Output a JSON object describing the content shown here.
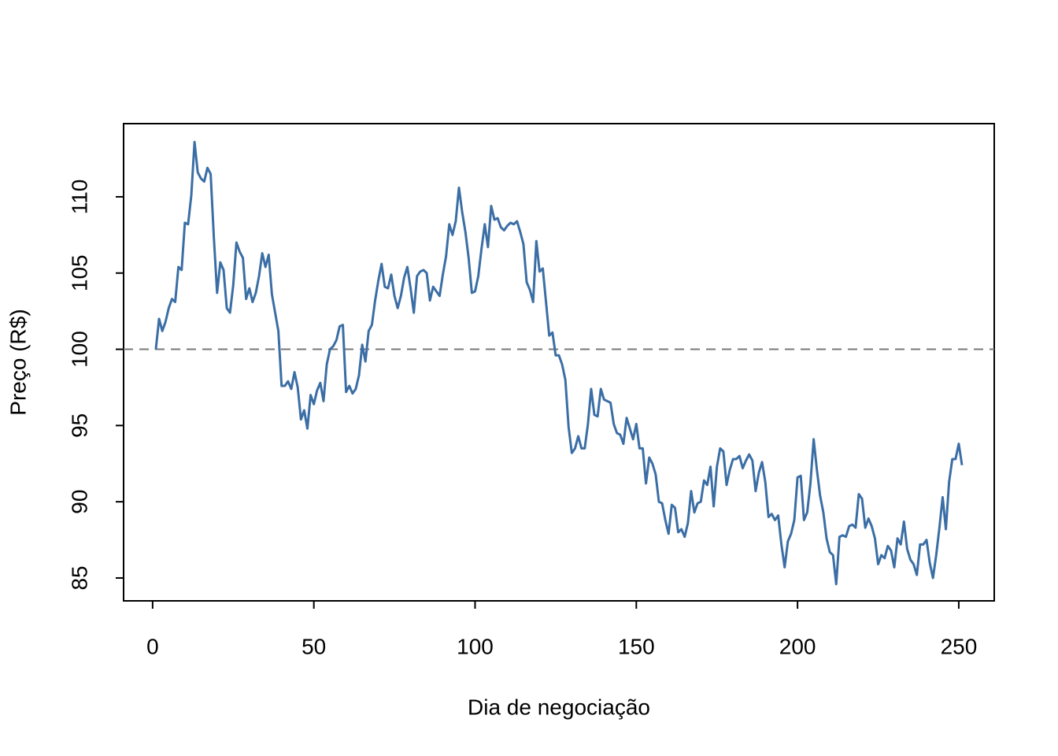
{
  "chart_data": {
    "type": "line",
    "xlabel": "Dia de negociação",
    "ylabel": "Preço (R$)",
    "x": [
      1,
      2,
      3,
      4,
      5,
      6,
      7,
      8,
      9,
      10,
      11,
      12,
      13,
      14,
      15,
      16,
      17,
      18,
      19,
      20,
      21,
      22,
      23,
      24,
      25,
      26,
      27,
      28,
      29,
      30,
      31,
      32,
      33,
      34,
      35,
      36,
      37,
      38,
      39,
      40,
      41,
      42,
      43,
      44,
      45,
      46,
      47,
      48,
      49,
      50,
      51,
      52,
      53,
      54,
      55,
      56,
      57,
      58,
      59,
      60,
      61,
      62,
      63,
      64,
      65,
      66,
      67,
      68,
      69,
      70,
      71,
      72,
      73,
      74,
      75,
      76,
      77,
      78,
      79,
      80,
      81,
      82,
      83,
      84,
      85,
      86,
      87,
      88,
      89,
      90,
      91,
      92,
      93,
      94,
      95,
      96,
      97,
      98,
      99,
      100,
      101,
      102,
      103,
      104,
      105,
      106,
      107,
      108,
      109,
      110,
      111,
      112,
      113,
      114,
      115,
      116,
      117,
      118,
      119,
      120,
      121,
      122,
      123,
      124,
      125,
      126,
      127,
      128,
      129,
      130,
      131,
      132,
      133,
      134,
      135,
      136,
      137,
      138,
      139,
      140,
      141,
      142,
      143,
      144,
      145,
      146,
      147,
      148,
      149,
      150,
      151,
      152,
      153,
      154,
      155,
      156,
      157,
      158,
      159,
      160,
      161,
      162,
      163,
      164,
      165,
      166,
      167,
      168,
      169,
      170,
      171,
      172,
      173,
      174,
      175,
      176,
      177,
      178,
      179,
      180,
      181,
      182,
      183,
      184,
      185,
      186,
      187,
      188,
      189,
      190,
      191,
      192,
      193,
      194,
      195,
      196,
      197,
      198,
      199,
      200,
      201,
      202,
      203,
      204,
      205,
      206,
      207,
      208,
      209,
      210,
      211,
      212,
      213,
      214,
      215,
      216,
      217,
      218,
      219,
      220,
      221,
      222,
      223,
      224,
      225,
      226,
      227,
      228,
      229,
      230,
      231,
      232,
      233,
      234,
      235,
      236,
      237,
      238,
      239,
      240,
      241,
      242,
      243,
      244,
      245,
      246,
      247,
      248,
      249,
      250,
      251
    ],
    "series": [
      {
        "color": "#3b6ea5",
        "values": [
          100.0,
          102.0,
          101.2,
          101.8,
          102.7,
          103.3,
          103.1,
          105.4,
          105.2,
          108.3,
          108.2,
          110.1,
          113.6,
          111.6,
          111.2,
          111.0,
          111.9,
          111.5,
          107.3,
          103.7,
          105.7,
          105.2,
          102.7,
          102.4,
          104.2,
          107.0,
          106.4,
          106.0,
          103.3,
          104.0,
          103.1,
          103.7,
          104.8,
          106.3,
          105.4,
          106.2,
          103.6,
          102.4,
          101.2,
          97.6,
          97.6,
          97.9,
          97.4,
          98.5,
          97.5,
          95.4,
          96.0,
          94.8,
          97.0,
          96.4,
          97.3,
          97.8,
          96.6,
          99.0,
          100.0,
          100.2,
          100.6,
          101.5,
          101.6,
          97.2,
          97.6,
          97.1,
          97.4,
          98.3,
          100.3,
          99.2,
          101.2,
          101.6,
          103.2,
          104.5,
          105.6,
          104.1,
          104.0,
          104.9,
          103.5,
          102.7,
          103.5,
          104.7,
          105.4,
          104.0,
          102.4,
          104.8,
          105.1,
          105.2,
          105.0,
          103.2,
          104.1,
          103.8,
          103.5,
          104.9,
          106.1,
          108.2,
          107.5,
          108.4,
          110.6,
          109.0,
          107.7,
          106.0,
          103.7,
          103.8,
          104.8,
          106.6,
          108.2,
          106.7,
          109.4,
          108.5,
          108.6,
          108.0,
          107.8,
          108.1,
          108.3,
          108.2,
          108.4,
          107.7,
          106.9,
          104.4,
          103.9,
          103.1,
          107.1,
          105.1,
          105.3,
          103.1,
          100.9,
          101.1,
          99.6,
          99.6,
          99.0,
          98.0,
          94.9,
          93.2,
          93.5,
          94.3,
          93.5,
          93.5,
          95.1,
          97.4,
          95.7,
          95.6,
          97.4,
          96.7,
          96.6,
          96.5,
          95.1,
          94.5,
          94.4,
          93.8,
          95.5,
          94.8,
          94.1,
          95.1,
          93.5,
          93.5,
          91.2,
          92.9,
          92.5,
          91.8,
          90.0,
          89.9,
          88.8,
          87.9,
          89.8,
          89.6,
          88.0,
          88.2,
          87.7,
          88.6,
          90.7,
          89.3,
          89.9,
          90.0,
          91.4,
          91.1,
          92.3,
          89.7,
          92.3,
          93.5,
          93.3,
          91.1,
          92.1,
          92.8,
          92.8,
          93.0,
          92.2,
          92.7,
          93.1,
          92.7,
          90.7,
          91.9,
          92.6,
          91.3,
          89.0,
          89.2,
          88.8,
          89.1,
          87.2,
          85.7,
          87.4,
          87.9,
          88.8,
          91.6,
          91.7,
          88.8,
          89.3,
          91.2,
          94.1,
          92.1,
          90.4,
          89.3,
          87.6,
          86.7,
          86.5,
          84.6,
          87.7,
          87.8,
          87.7,
          88.4,
          88.5,
          88.3,
          90.5,
          90.2,
          88.3,
          88.9,
          88.4,
          87.6,
          85.9,
          86.5,
          86.3,
          87.1,
          86.8,
          85.7,
          87.6,
          87.2,
          88.7,
          86.9,
          86.2,
          85.9,
          85.2,
          87.2,
          87.2,
          87.5,
          86.0,
          85.0,
          86.5,
          88.3,
          90.3,
          88.2,
          91.3,
          92.8,
          92.8,
          93.8,
          92.4
        ]
      }
    ],
    "reference_line": {
      "value": 100,
      "color": "#777777",
      "dashed": true
    },
    "xlim": [
      -9.0,
      261.0
    ],
    "ylim": [
      83.5,
      114.8
    ],
    "xticks": [
      0,
      50,
      100,
      150,
      200,
      250
    ],
    "yticks": [
      85,
      90,
      95,
      100,
      105,
      110
    ],
    "grid": false
  }
}
